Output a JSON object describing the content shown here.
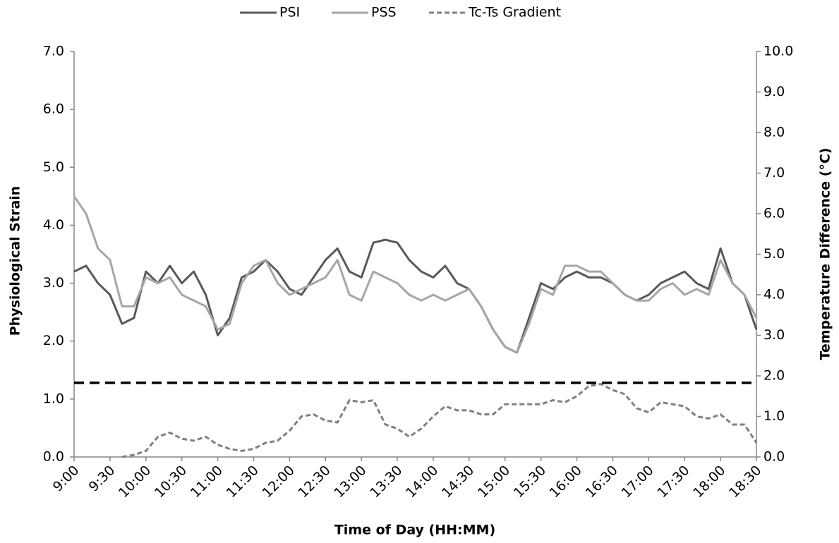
{
  "chart_data": {
    "type": "line",
    "x_label": "Time of Day (HH:MM)",
    "y_label": "Physiological Strain",
    "y2_label": "Temperature Difference (°C)",
    "x": [
      540,
      550,
      560,
      570,
      580,
      590,
      600,
      610,
      620,
      630,
      640,
      650,
      660,
      670,
      680,
      690,
      700,
      710,
      720,
      730,
      740,
      750,
      760,
      770,
      780,
      790,
      800,
      810,
      820,
      830,
      840,
      850,
      860,
      870,
      880,
      890,
      900,
      910,
      920,
      930,
      940,
      950,
      960,
      970,
      980,
      990,
      1000,
      1010,
      1020,
      1030,
      1040,
      1050,
      1060,
      1070,
      1080,
      1090,
      1100,
      1110
    ],
    "series": [
      {
        "name": "PSI",
        "color": "#595959",
        "dash": false,
        "axis": "y",
        "values": [
          3.2,
          3.3,
          3.0,
          2.8,
          2.3,
          2.4,
          3.2,
          3.0,
          3.3,
          3.0,
          3.2,
          2.8,
          2.1,
          2.4,
          3.1,
          3.2,
          3.4,
          3.2,
          2.9,
          2.8,
          3.1,
          3.4,
          3.6,
          3.2,
          3.1,
          3.7,
          3.75,
          3.7,
          3.4,
          3.2,
          3.1,
          3.3,
          3.0,
          2.9,
          2.6,
          2.2,
          1.9,
          1.8,
          2.4,
          3.0,
          2.9,
          3.1,
          3.2,
          3.1,
          3.1,
          3.0,
          2.8,
          2.7,
          2.8,
          3.0,
          3.1,
          3.2,
          3.0,
          2.9,
          3.6,
          3.0,
          2.8,
          2.2
        ]
      },
      {
        "name": "PSS",
        "color": "#a6a6a6",
        "dash": false,
        "axis": "y",
        "values": [
          4.5,
          4.2,
          3.6,
          3.4,
          2.6,
          2.6,
          3.1,
          3.0,
          3.1,
          2.8,
          2.7,
          2.6,
          2.2,
          2.3,
          3.0,
          3.3,
          3.4,
          3.0,
          2.8,
          2.9,
          3.0,
          3.1,
          3.4,
          2.8,
          2.7,
          3.2,
          3.1,
          3.0,
          2.8,
          2.7,
          2.8,
          2.7,
          2.8,
          2.9,
          2.6,
          2.2,
          1.9,
          1.8,
          2.3,
          2.9,
          2.8,
          3.3,
          3.3,
          3.2,
          3.2,
          3.0,
          2.8,
          2.7,
          2.7,
          2.9,
          3.0,
          2.8,
          2.9,
          2.8,
          3.4,
          3.0,
          2.8,
          2.4
        ]
      },
      {
        "name": "Tc-Ts Gradient",
        "color": "#808080",
        "dash": true,
        "axis": "y2",
        "values": [
          null,
          null,
          null,
          null,
          0.0,
          0.05,
          0.15,
          0.5,
          0.6,
          0.45,
          0.4,
          0.5,
          0.3,
          0.2,
          0.15,
          0.2,
          0.35,
          0.4,
          0.65,
          1.0,
          1.05,
          0.9,
          0.85,
          1.4,
          1.35,
          1.4,
          0.8,
          0.7,
          0.5,
          0.7,
          1.0,
          1.25,
          1.15,
          1.15,
          1.05,
          1.05,
          1.3,
          1.3,
          1.3,
          1.3,
          1.4,
          1.35,
          1.5,
          1.75,
          1.8,
          1.65,
          1.55,
          1.2,
          1.1,
          1.35,
          1.3,
          1.25,
          1.0,
          0.95,
          1.05,
          0.8,
          0.8,
          0.35
        ]
      }
    ],
    "hline": 1.28,
    "xlim": [
      540,
      1110
    ],
    "xticks": [
      {
        "value": 540,
        "label": "9:00"
      },
      {
        "value": 570,
        "label": "9:30"
      },
      {
        "value": 600,
        "label": "10:00"
      },
      {
        "value": 630,
        "label": "10:30"
      },
      {
        "value": 660,
        "label": "11:00"
      },
      {
        "value": 690,
        "label": "11:30"
      },
      {
        "value": 720,
        "label": "12:00"
      },
      {
        "value": 750,
        "label": "12:30"
      },
      {
        "value": 780,
        "label": "13:00"
      },
      {
        "value": 810,
        "label": "13:30"
      },
      {
        "value": 840,
        "label": "14:00"
      },
      {
        "value": 870,
        "label": "14:30"
      },
      {
        "value": 900,
        "label": "15:00"
      },
      {
        "value": 930,
        "label": "15:30"
      },
      {
        "value": 960,
        "label": "16:00"
      },
      {
        "value": 990,
        "label": "16:30"
      },
      {
        "value": 1020,
        "label": "17:00"
      },
      {
        "value": 1050,
        "label": "17:30"
      },
      {
        "value": 1080,
        "label": "18:00"
      },
      {
        "value": 1110,
        "label": "18:30"
      }
    ],
    "ylim": [
      0,
      7
    ],
    "yticks": [
      {
        "value": 0,
        "label": "0.0"
      },
      {
        "value": 1,
        "label": "1.0"
      },
      {
        "value": 2,
        "label": "2.0"
      },
      {
        "value": 3,
        "label": "3.0"
      },
      {
        "value": 4,
        "label": "4.0"
      },
      {
        "value": 5,
        "label": "5.0"
      },
      {
        "value": 6,
        "label": "6.0"
      },
      {
        "value": 7,
        "label": "7.0"
      }
    ],
    "y2lim": [
      0,
      10
    ],
    "y2ticks": [
      {
        "value": 0,
        "label": "0.0"
      },
      {
        "value": 1,
        "label": "1.0"
      },
      {
        "value": 2,
        "label": "2.0"
      },
      {
        "value": 3,
        "label": "3.0"
      },
      {
        "value": 4,
        "label": "4.0"
      },
      {
        "value": 5,
        "label": "5.0"
      },
      {
        "value": 6,
        "label": "6.0"
      },
      {
        "value": 7,
        "label": "7.0"
      },
      {
        "value": 8,
        "label": "8.0"
      },
      {
        "value": 9,
        "label": "9.0"
      },
      {
        "value": 10,
        "label": "10.0"
      }
    ],
    "legend": "top"
  }
}
